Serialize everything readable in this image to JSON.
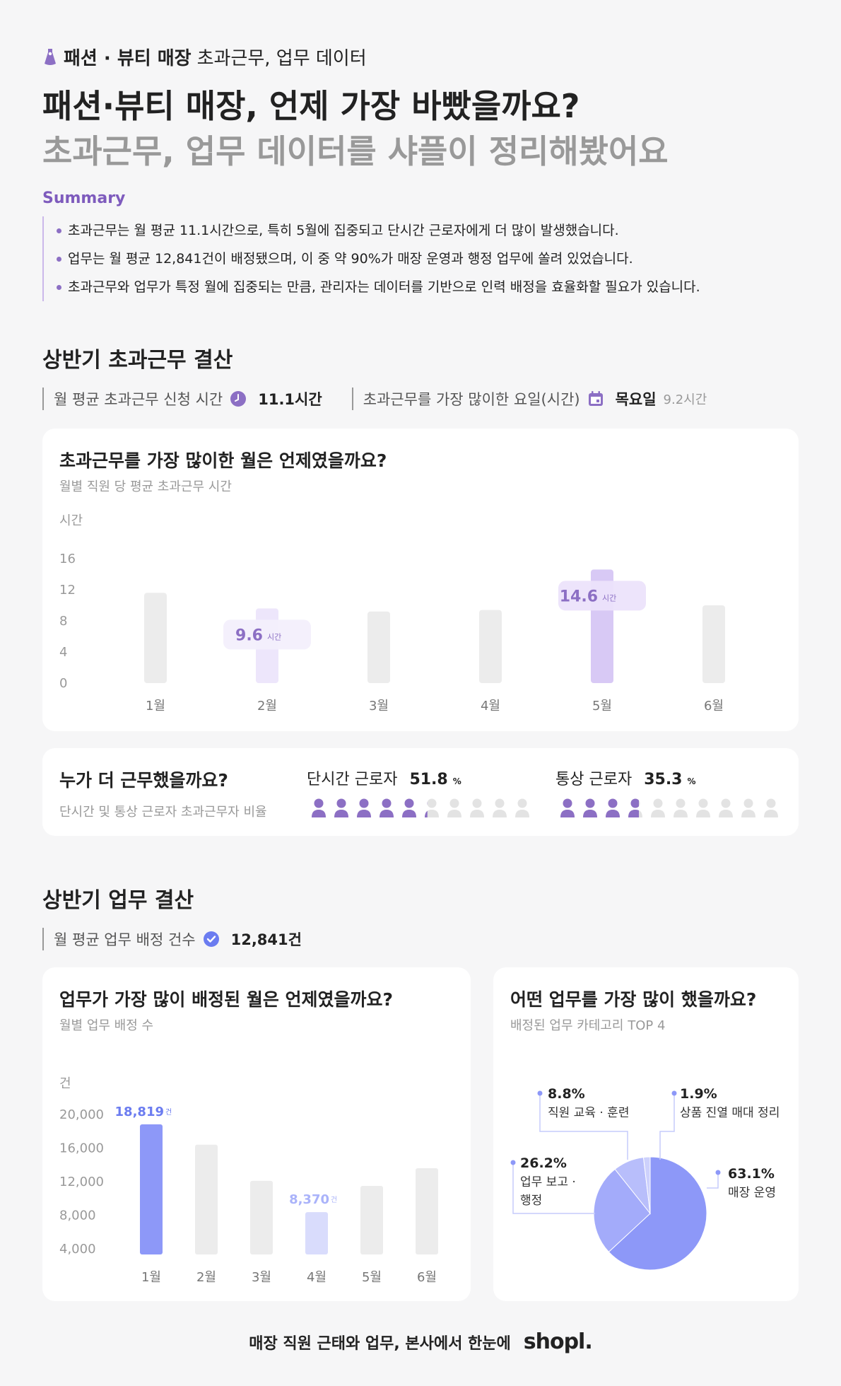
{
  "header": {
    "kicker_bold": "패션 · 뷰티 매장",
    "kicker_rest": "초과근무, 업무 데이터",
    "title_line1": "패션·뷰티 매장, 언제 가장 바빴을까요?",
    "title_line2": "초과근무, 업무 데이터를 샤플이 정리해봤어요"
  },
  "summary": {
    "label": "Summary",
    "items": [
      "초과근무는 월 평균 11.1시간으로, 특히 5월에 집중되고 단시간 근로자에게 더 많이 발생했습니다.",
      "업무는 월 평균 12,841건이 배정됐으며, 이 중 약 90%가 매장 운영과 행정 업무에 쏠려 있었습니다.",
      "초과근무와 업무가 특정 월에 집중되는 만큼, 관리자는 데이터를 기반으로 인력 배정을 효율화할 필요가 있습니다."
    ]
  },
  "overtime_section": {
    "title": "상반기 초과근무 결산",
    "stat1_label": "월 평균 초과근무 신청 시간",
    "stat1_value": "11.1시간",
    "stat2_label": "초과근무를 가장 많이한 요일(시간)",
    "stat2_value": "목요일",
    "stat2_sub": "9.2시간"
  },
  "task_section": {
    "title": "상반기 업무 결산",
    "stat_label": "월 평균 업무 배정 건수",
    "stat_value": "12,841건"
  },
  "workers": {
    "title": "누가 더 근무했을까요?",
    "subtitle": "단시간 및 통상 근로자 초과근무자 비율",
    "part_label": "단시간 근로자",
    "part_value": "51.8",
    "part_unit": "%",
    "part_ratio": 0.518,
    "full_label": "통상 근로자",
    "full_value": "35.3",
    "full_unit": "%",
    "full_ratio": 0.353,
    "icon_count": 10
  },
  "footer": {
    "text": "매장 직원 근태와 업무, 본사에서 한눈에",
    "logo": "shopl."
  },
  "colors": {
    "purple": "#8c6fc4",
    "light_purple_bar": "#d8c9f5",
    "lavender_bar": "#ede6fb",
    "blue": "#8d98f8",
    "light_blue": "#d9dcfc",
    "gray_bar": "#ececec"
  },
  "icons": [
    "dress-icon",
    "clock-icon",
    "calendar-icon",
    "check-icon",
    "person-icon"
  ],
  "chart_data": [
    {
      "type": "bar",
      "title": "초과근무를 가장 많이한 월은 언제였을까요?",
      "subtitle": "월별 직원 당 평균 초과근무 시간",
      "ylabel": "시간",
      "ylim": [
        0,
        16
      ],
      "yticks": [
        "0",
        "4",
        "8",
        "12",
        "16"
      ],
      "categories": [
        "1월",
        "2월",
        "3월",
        "4월",
        "5월",
        "6월"
      ],
      "values": [
        11.6,
        9.6,
        9.2,
        9.4,
        14.6,
        10.0
      ],
      "highlight_labels": [
        {
          "index": 1,
          "value": "9.6",
          "unit": "시간"
        },
        {
          "index": 4,
          "value": "14.6",
          "unit": "시간"
        }
      ]
    },
    {
      "type": "bar",
      "title": "업무가 가장 많이 배정된 월은 언제였을까요?",
      "subtitle": "월별 업무 배정 수",
      "ylabel": "건",
      "ylim": [
        4000,
        20000
      ],
      "yticks": [
        "4,000",
        "8,000",
        "12,000",
        "16,000",
        "20,000"
      ],
      "categories": [
        "1월",
        "2월",
        "3월",
        "4월",
        "5월",
        "6월"
      ],
      "values": [
        18819,
        16400,
        12100,
        8370,
        11500,
        13600
      ],
      "highlight_labels": [
        {
          "index": 0,
          "value": "18,819",
          "unit": "건"
        },
        {
          "index": 3,
          "value": "8,370",
          "unit": "건"
        }
      ]
    },
    {
      "type": "pie",
      "title": "어떤 업무를 가장 많이 했을까요?",
      "subtitle": "배정된 업무 카테고리 TOP 4",
      "slices": [
        {
          "label": "매장 운영",
          "value": 63.1,
          "display": "63.1%",
          "color": "#8d98f8"
        },
        {
          "label": "업무 보고 · 행정",
          "value": 26.2,
          "display": "26.2%",
          "color": "#a3abfa"
        },
        {
          "label": "직원 교육 · 훈련",
          "value": 8.8,
          "display": "8.8%",
          "color": "#b8befb"
        },
        {
          "label": "상품 진열 매대 정리",
          "value": 1.9,
          "display": "1.9%",
          "color": "#cdd1fc"
        }
      ]
    }
  ]
}
